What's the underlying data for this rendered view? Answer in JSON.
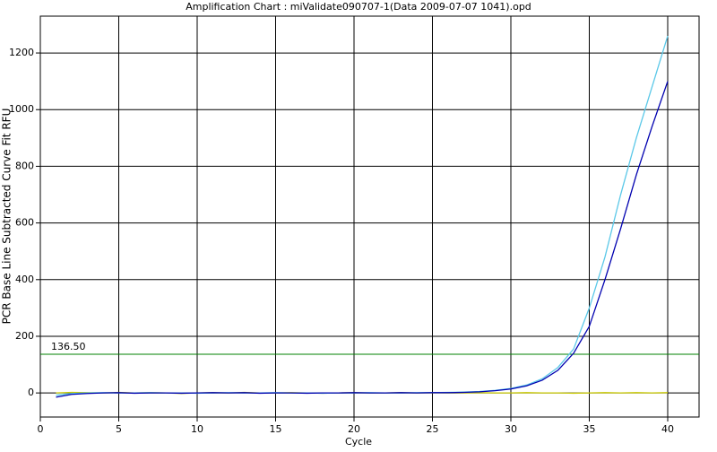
{
  "chart_data": {
    "type": "line",
    "title": "Amplification Chart : miValidate090707-1(Data 2009-07-07 1041).opd",
    "x_label": "Cycle",
    "y_label": "PCR Base Line Subtracted Curve Fit RFU",
    "x": [
      1,
      2,
      3,
      4,
      5,
      6,
      7,
      8,
      9,
      10,
      11,
      12,
      13,
      14,
      15,
      16,
      17,
      18,
      19,
      20,
      21,
      22,
      23,
      24,
      25,
      26,
      27,
      28,
      29,
      30,
      31,
      32,
      33,
      34,
      35,
      36,
      37,
      38,
      39,
      40
    ],
    "series": [
      {
        "color": "#c8c800",
        "values": [
          0,
          2,
          1,
          0,
          2,
          0,
          1,
          0,
          -2,
          0,
          1,
          0,
          2,
          0,
          0,
          1,
          0,
          -1,
          0,
          1,
          0,
          0,
          1,
          0,
          1,
          0,
          0,
          1,
          0,
          0,
          1,
          0,
          0,
          -1,
          0,
          1,
          0,
          1,
          0,
          1
        ]
      },
      {
        "color": "#5bc8e8",
        "values": [
          -8,
          -2,
          0,
          1,
          0,
          0,
          1,
          0,
          0,
          -1,
          0,
          1,
          0,
          0,
          1,
          0,
          0,
          -1,
          0,
          0,
          1,
          0,
          0,
          1,
          1,
          2,
          3,
          5,
          9,
          16,
          28,
          50,
          90,
          155,
          300,
          480,
          700,
          900,
          1080,
          1260
        ]
      },
      {
        "color": "#0000b0",
        "values": [
          -15,
          -5,
          -2,
          0,
          1,
          -1,
          0,
          0,
          -1,
          0,
          1,
          0,
          1,
          -1,
          0,
          0,
          -1,
          0,
          0,
          1,
          0,
          0,
          1,
          0,
          1,
          1,
          2,
          4,
          8,
          14,
          25,
          45,
          80,
          140,
          235,
          400,
          580,
          770,
          940,
          1100
        ]
      }
    ],
    "threshold": {
      "value": 136.5,
      "label": "136.50",
      "color": "#008000"
    },
    "xlim": [
      0,
      42
    ],
    "ylim": [
      -85,
      1330
    ],
    "xticks": [
      0,
      5,
      10,
      15,
      20,
      25,
      30,
      35,
      40
    ],
    "yticks": [
      0,
      200,
      400,
      600,
      800,
      1000,
      1200
    ],
    "grid": true
  }
}
